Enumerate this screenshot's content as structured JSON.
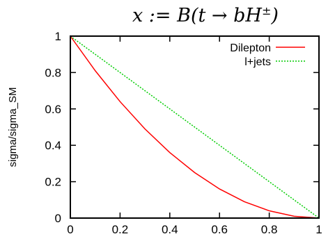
{
  "chart_data": {
    "type": "line",
    "title_main": "x := B(t → bH",
    "title_sup": "±",
    "ylabel": "sigma/sigma_SM",
    "xlabel": "",
    "xlim": [
      0,
      1
    ],
    "ylim": [
      0,
      1
    ],
    "xticks": [
      "0",
      "0.2",
      "0.4",
      "0.6",
      "0.8",
      "1"
    ],
    "yticks": [
      "0",
      "0.2",
      "0.4",
      "0.6",
      "0.8",
      "1"
    ],
    "legend_position": "top-right",
    "x": [
      0,
      0.1,
      0.2,
      0.3,
      0.4,
      0.5,
      0.6,
      0.7,
      0.8,
      0.9,
      1.0
    ],
    "series": [
      {
        "name": "Dilepton",
        "color": "#ff0000",
        "dash": "solid",
        "values": [
          1.0,
          0.81,
          0.64,
          0.49,
          0.36,
          0.25,
          0.16,
          0.09,
          0.04,
          0.01,
          0.0
        ]
      },
      {
        "name": "l+jets",
        "color": "#00cc00",
        "dash": "dotted",
        "values": [
          1.0,
          0.9,
          0.8,
          0.7,
          0.6,
          0.5,
          0.4,
          0.3,
          0.2,
          0.1,
          0.0
        ]
      }
    ]
  }
}
